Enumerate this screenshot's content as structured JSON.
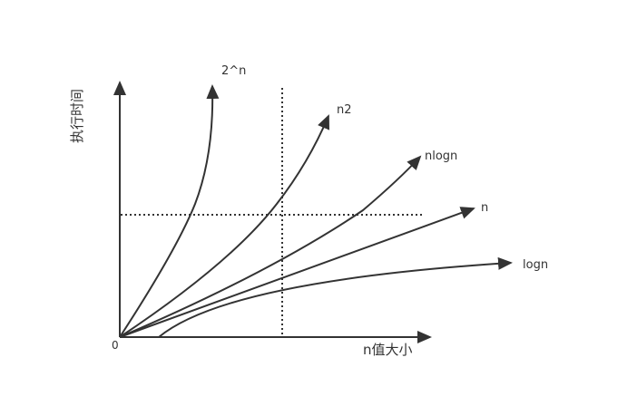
{
  "axes": {
    "x_label": "n值大小",
    "y_label": "执行时间",
    "origin_label": "0"
  },
  "curves": [
    {
      "id": "exponential",
      "label": "2^n"
    },
    {
      "id": "quadratic",
      "label": "n2"
    },
    {
      "id": "nlogn",
      "label": "nlogn"
    },
    {
      "id": "linear",
      "label": "n"
    },
    {
      "id": "logarithmic",
      "label": "logn"
    }
  ],
  "colors": {
    "stroke": "#333333",
    "background": "#ffffff"
  }
}
